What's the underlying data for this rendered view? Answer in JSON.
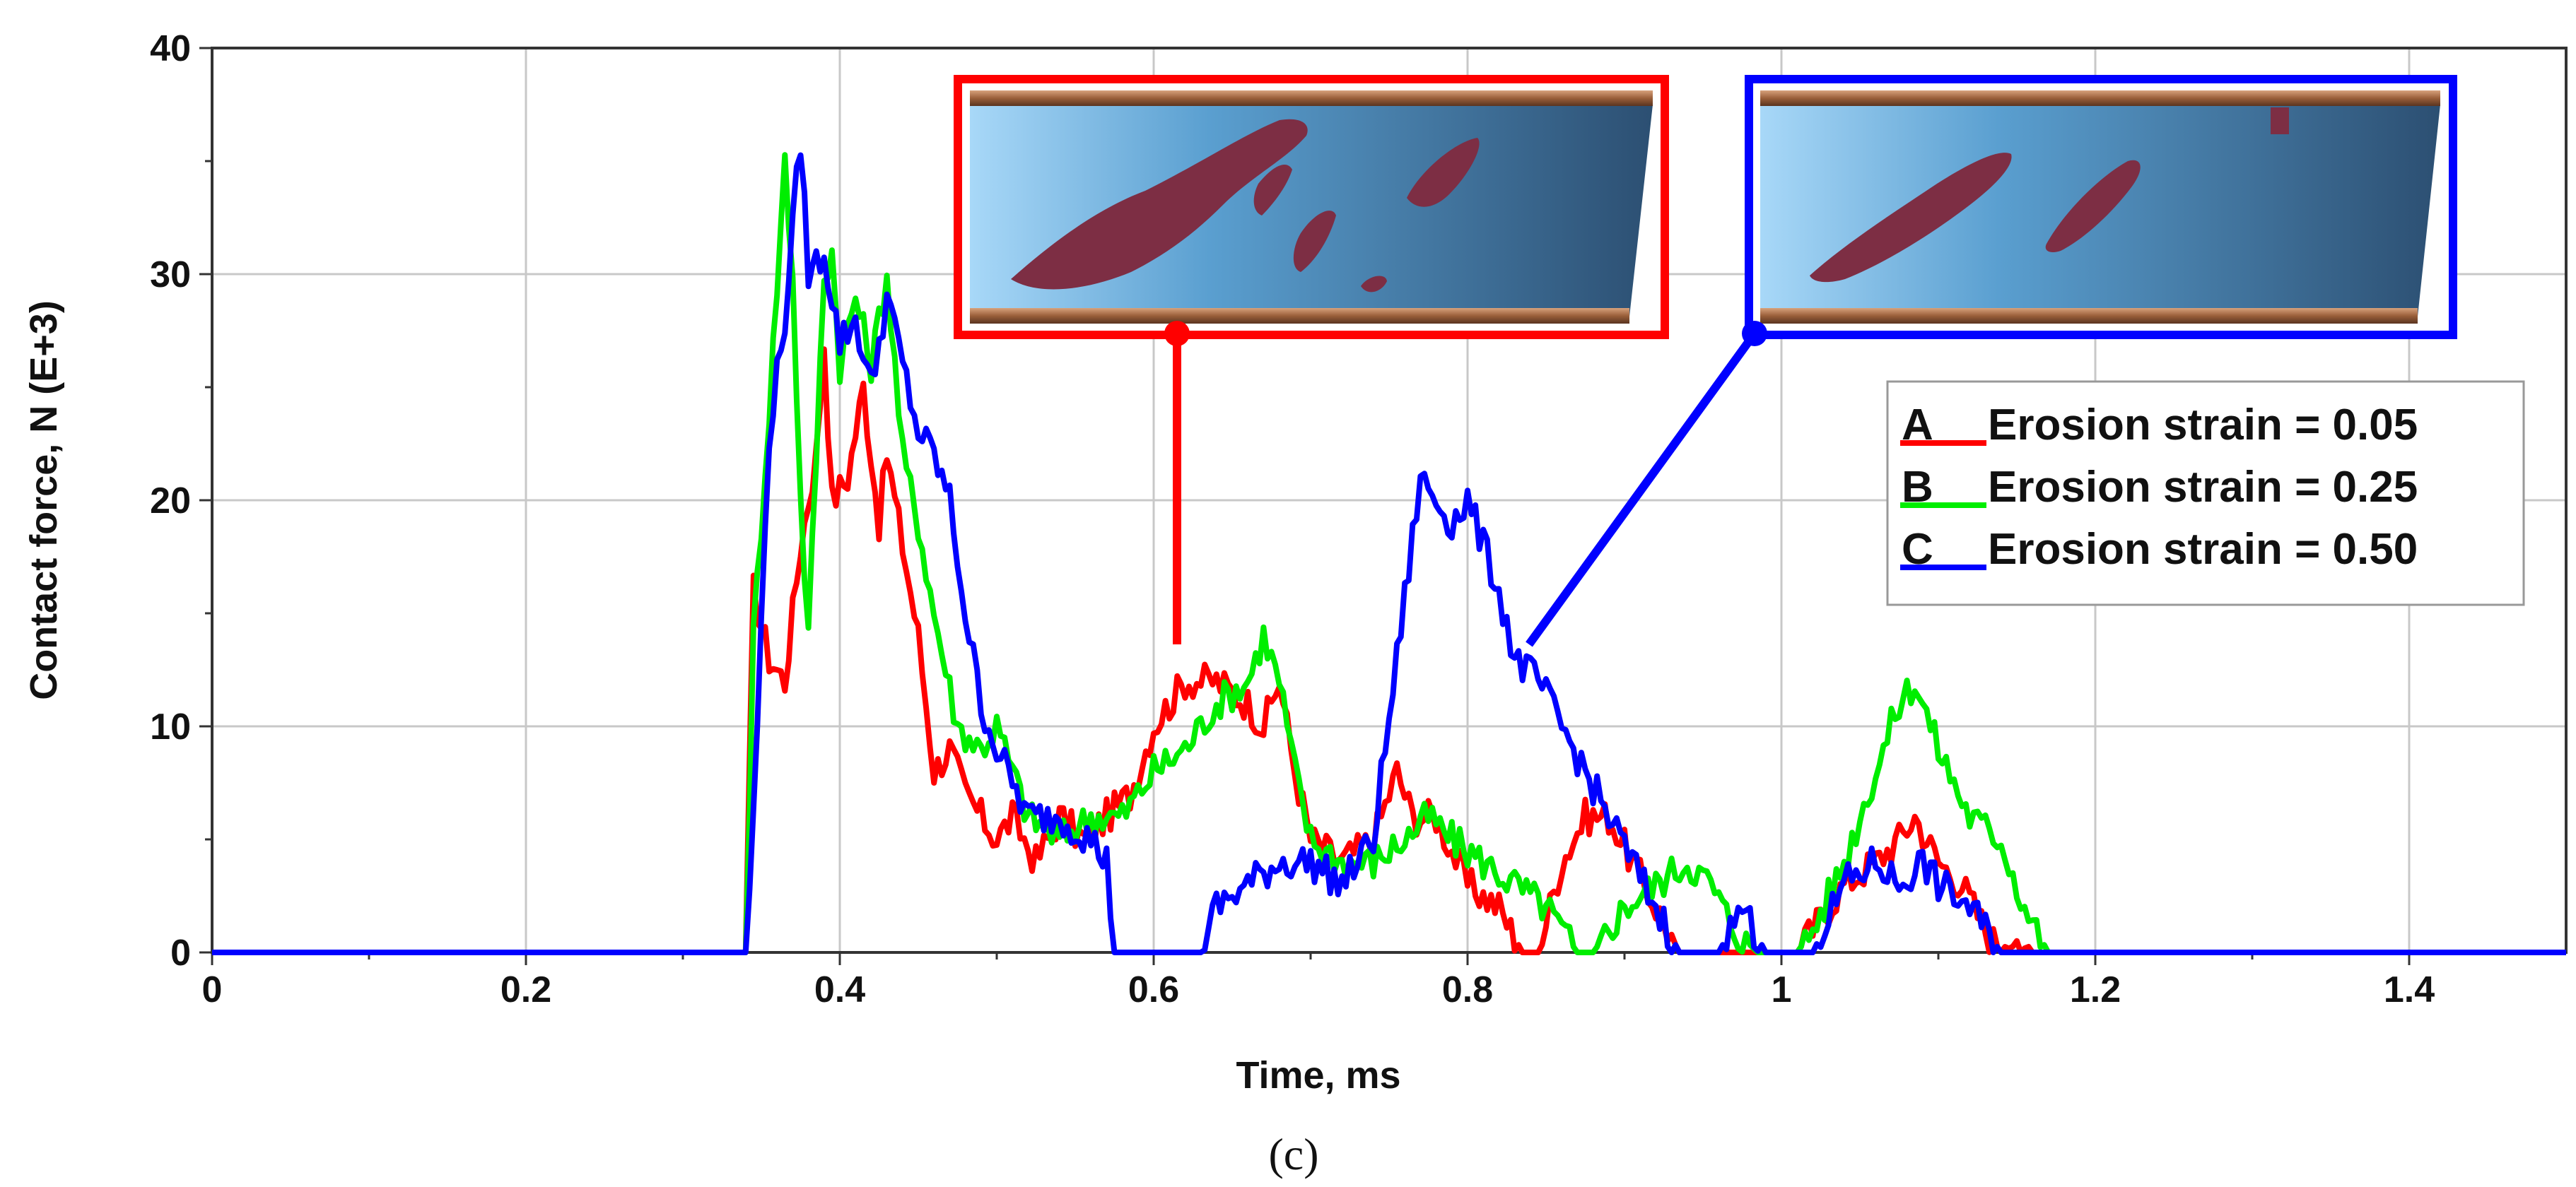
{
  "chart_data": {
    "type": "line",
    "title": "",
    "xlabel": "Time, ms",
    "ylabel": "Contact force, N (E+3)",
    "xlim": [
      0,
      1.5
    ],
    "ylim": [
      0,
      40
    ],
    "xticks": [
      0,
      0.2,
      0.4,
      0.6,
      0.8,
      1,
      1.2,
      1.4
    ],
    "xtick_labels": [
      "0",
      "0.2",
      "0.4",
      "0.6",
      "0.8",
      "1",
      "1.2",
      "1.4"
    ],
    "yticks": [
      0,
      10,
      20,
      30,
      40
    ],
    "ytick_labels": [
      "0",
      "10",
      "20",
      "30",
      "40"
    ],
    "grid": true,
    "legend_position": "right",
    "caption": "(c)",
    "series": [
      {
        "name": "Erosion strain = 0.05",
        "marker": "A",
        "color": "#ff0000",
        "x": [
          0,
          0.34,
          0.345,
          0.355,
          0.365,
          0.375,
          0.385,
          0.39,
          0.395,
          0.405,
          0.415,
          0.42,
          0.425,
          0.43,
          0.44,
          0.45,
          0.46,
          0.47,
          0.48,
          0.5,
          0.51,
          0.525,
          0.54,
          0.555,
          0.57,
          0.585,
          0.6,
          0.62,
          0.64,
          0.66,
          0.67,
          0.68,
          0.69,
          0.7,
          0.72,
          0.74,
          0.755,
          0.765,
          0.78,
          0.8,
          0.82,
          0.835,
          0.845,
          0.86,
          0.875,
          0.89,
          0.905,
          0.92,
          0.935,
          0.95,
          0.96,
          1.0,
          1.01,
          1.02,
          1.04,
          1.06,
          1.075,
          1.085,
          1.1,
          1.115,
          1.13,
          1.14,
          1.15,
          1.16,
          1.5
        ],
        "y": [
          0,
          0,
          16,
          13,
          12,
          18,
          22,
          27,
          20,
          21,
          25,
          22,
          19,
          22,
          18,
          14,
          8,
          9,
          7,
          5,
          6,
          4,
          6,
          5,
          6,
          7,
          10,
          12,
          12,
          11,
          10,
          12,
          8,
          5,
          4,
          5,
          8,
          6,
          6,
          3,
          2,
          0,
          0,
          4,
          6,
          6,
          4,
          2,
          0,
          0,
          0,
          0,
          0,
          1,
          3,
          4,
          5,
          6,
          4,
          3,
          1,
          0,
          1,
          0,
          0
        ]
      },
      {
        "name": "Erosion strain = 0.25",
        "marker": "B",
        "color": "#00ee00",
        "x": [
          0,
          0.34,
          0.345,
          0.355,
          0.365,
          0.37,
          0.375,
          0.38,
          0.39,
          0.395,
          0.4,
          0.41,
          0.42,
          0.43,
          0.44,
          0.45,
          0.46,
          0.475,
          0.49,
          0.5,
          0.51,
          0.52,
          0.54,
          0.56,
          0.58,
          0.6,
          0.62,
          0.64,
          0.66,
          0.67,
          0.68,
          0.69,
          0.7,
          0.72,
          0.74,
          0.76,
          0.775,
          0.79,
          0.81,
          0.83,
          0.85,
          0.87,
          0.88,
          0.9,
          0.92,
          0.94,
          0.955,
          0.97,
          0.985,
          1.0,
          1.01,
          1.02,
          1.04,
          1.06,
          1.075,
          1.085,
          1.1,
          1.12,
          1.14,
          1.155,
          1.17,
          1.18,
          1.5
        ],
        "y": [
          0,
          0,
          14,
          24,
          35,
          30,
          20,
          14,
          30,
          31,
          26,
          29,
          26,
          30,
          22,
          19,
          15,
          10,
          9,
          10,
          8,
          6,
          5,
          6,
          6,
          8,
          9,
          11,
          12,
          14,
          12,
          8,
          5,
          4,
          4,
          5,
          6,
          5,
          4,
          3,
          2,
          0,
          0,
          2,
          3,
          4,
          3,
          1,
          0,
          0,
          0,
          1,
          4,
          8,
          11,
          12,
          9,
          6,
          5,
          2,
          0,
          0,
          0
        ]
      },
      {
        "name": "Erosion strain = 0.50",
        "marker": "C",
        "color": "#0000ff",
        "x": [
          0,
          0.34,
          0.345,
          0.355,
          0.365,
          0.375,
          0.38,
          0.39,
          0.4,
          0.41,
          0.42,
          0.43,
          0.44,
          0.45,
          0.46,
          0.47,
          0.48,
          0.49,
          0.5,
          0.52,
          0.54,
          0.56,
          0.57,
          0.575,
          0.6,
          0.62,
          0.63,
          0.64,
          0.66,
          0.68,
          0.7,
          0.72,
          0.74,
          0.755,
          0.77,
          0.78,
          0.79,
          0.8,
          0.81,
          0.82,
          0.83,
          0.845,
          0.86,
          0.875,
          0.89,
          0.905,
          0.92,
          0.935,
          0.95,
          0.96,
          0.975,
          0.99,
          1.0,
          1.01,
          1.02,
          1.04,
          1.06,
          1.075,
          1.09,
          1.1,
          1.12,
          1.14,
          1.15,
          1.5
        ],
        "y": [
          0,
          0,
          6,
          23,
          28,
          36,
          30,
          31,
          27,
          28,
          25,
          29,
          26,
          23,
          22,
          20,
          15,
          11,
          9,
          6,
          6,
          5,
          4,
          0,
          0,
          0,
          0,
          2,
          3,
          4,
          4,
          3,
          5,
          13,
          21,
          20,
          19,
          20,
          18,
          16,
          13,
          12,
          10,
          8,
          6,
          4,
          2,
          0,
          0,
          0,
          2,
          0,
          0,
          0,
          0,
          3,
          4,
          3,
          4,
          3,
          2,
          0,
          0,
          0
        ]
      }
    ]
  },
  "legend": {
    "entries": [
      {
        "marker": "A",
        "label": "Erosion strain = 0.05"
      },
      {
        "marker": "B",
        "label": "Erosion strain = 0.25"
      },
      {
        "marker": "C",
        "label": "Erosion strain = 0.50"
      }
    ]
  },
  "insets": [
    {
      "frame_color": "#ff0000",
      "points_to": {
        "x": 0.62,
        "y": 13.5
      },
      "depicts": "Erosion strain = 0.05"
    },
    {
      "frame_color": "#0000ff",
      "points_to": {
        "x": 0.84,
        "y": 13.5
      },
      "depicts": "Erosion strain = 0.50"
    }
  ]
}
